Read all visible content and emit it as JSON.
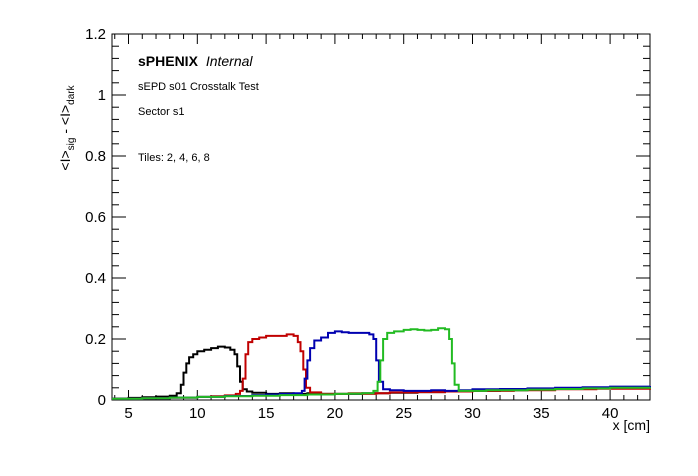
{
  "chart_data": {
    "type": "line",
    "style": "step-histogram",
    "xlabel": "x [cm]",
    "ylabel": {
      "main1": "<I>",
      "sub1": "sig",
      "mid": " - <I>",
      "sub2": "dark"
    },
    "xlim": [
      3.8,
      42.9
    ],
    "ylim": [
      0,
      1.2
    ],
    "xticks": [
      5,
      10,
      15,
      20,
      25,
      30,
      35,
      40
    ],
    "yticks": [
      0,
      0.2,
      0.4,
      0.6,
      0.8,
      1,
      1.2
    ],
    "ytick_labels": [
      "0",
      "0.2",
      "0.4",
      "0.6",
      "0.8",
      "1",
      "1.2"
    ],
    "grid": false,
    "annotations": {
      "brand": "sPHENIX",
      "status": "Internal",
      "test": "sEPD s01 Crosstalk Test",
      "sector": "Sector s1",
      "tiles": "Tiles: 2, 4, 6, 8"
    },
    "series": [
      {
        "color": "#000000",
        "points": [
          [
            3.8,
            0.005
          ],
          [
            5,
            0.007
          ],
          [
            6,
            0.009
          ],
          [
            7,
            0.011
          ],
          [
            8,
            0.014
          ],
          [
            8.5,
            0.022
          ],
          [
            8.8,
            0.05
          ],
          [
            9.0,
            0.09
          ],
          [
            9.2,
            0.12
          ],
          [
            9.4,
            0.14
          ],
          [
            9.7,
            0.15
          ],
          [
            10.0,
            0.16
          ],
          [
            10.5,
            0.165
          ],
          [
            11.0,
            0.17
          ],
          [
            11.5,
            0.175
          ],
          [
            12.0,
            0.172
          ],
          [
            12.4,
            0.165
          ],
          [
            12.7,
            0.15
          ],
          [
            12.9,
            0.11
          ],
          [
            13.1,
            0.06
          ],
          [
            13.3,
            0.035
          ],
          [
            13.6,
            0.028
          ],
          [
            14,
            0.024
          ],
          [
            15,
            0.02
          ],
          [
            16,
            0.022
          ],
          [
            17,
            0.02
          ],
          [
            18,
            0.022
          ],
          [
            19,
            0.02
          ],
          [
            20,
            0.02
          ],
          [
            22,
            0.022
          ],
          [
            24,
            0.024
          ],
          [
            26,
            0.026
          ],
          [
            28,
            0.028
          ],
          [
            30,
            0.03
          ],
          [
            32,
            0.032
          ],
          [
            34,
            0.034
          ],
          [
            36,
            0.036
          ],
          [
            38,
            0.038
          ],
          [
            40,
            0.04
          ],
          [
            42.9,
            0.042
          ]
        ]
      },
      {
        "color": "#c00000",
        "points": [
          [
            3.8,
            0.004
          ],
          [
            6,
            0.006
          ],
          [
            8,
            0.008
          ],
          [
            10,
            0.01
          ],
          [
            11,
            0.012
          ],
          [
            12,
            0.015
          ],
          [
            12.8,
            0.02
          ],
          [
            13.1,
            0.03
          ],
          [
            13.3,
            0.07
          ],
          [
            13.5,
            0.15
          ],
          [
            13.7,
            0.19
          ],
          [
            14.0,
            0.2
          ],
          [
            14.5,
            0.205
          ],
          [
            15.0,
            0.21
          ],
          [
            15.5,
            0.21
          ],
          [
            16.0,
            0.21
          ],
          [
            16.5,
            0.215
          ],
          [
            17.0,
            0.21
          ],
          [
            17.3,
            0.19
          ],
          [
            17.5,
            0.16
          ],
          [
            17.7,
            0.1
          ],
          [
            17.9,
            0.04
          ],
          [
            18.2,
            0.025
          ],
          [
            19,
            0.02
          ],
          [
            20,
            0.02
          ],
          [
            21,
            0.022
          ],
          [
            22,
            0.02
          ],
          [
            23,
            0.022
          ],
          [
            24,
            0.025
          ],
          [
            26,
            0.026
          ],
          [
            28,
            0.028
          ],
          [
            30,
            0.03
          ],
          [
            33,
            0.032
          ],
          [
            36,
            0.035
          ],
          [
            39,
            0.037
          ],
          [
            42.9,
            0.04
          ]
        ]
      },
      {
        "color": "#0000b0",
        "points": [
          [
            3.8,
            0.004
          ],
          [
            6,
            0.006
          ],
          [
            8,
            0.008
          ],
          [
            10,
            0.01
          ],
          [
            12,
            0.013
          ],
          [
            14,
            0.016
          ],
          [
            15,
            0.018
          ],
          [
            16,
            0.02
          ],
          [
            17,
            0.022
          ],
          [
            17.6,
            0.03
          ],
          [
            17.8,
            0.07
          ],
          [
            18.0,
            0.13
          ],
          [
            18.2,
            0.17
          ],
          [
            18.5,
            0.195
          ],
          [
            19.0,
            0.205
          ],
          [
            19.5,
            0.22
          ],
          [
            20.0,
            0.225
          ],
          [
            20.5,
            0.222
          ],
          [
            21.0,
            0.22
          ],
          [
            21.5,
            0.22
          ],
          [
            22.0,
            0.22
          ],
          [
            22.5,
            0.215
          ],
          [
            22.8,
            0.2
          ],
          [
            23.0,
            0.13
          ],
          [
            23.2,
            0.06
          ],
          [
            23.5,
            0.035
          ],
          [
            24,
            0.032
          ],
          [
            25,
            0.03
          ],
          [
            26,
            0.03
          ],
          [
            27,
            0.032
          ],
          [
            28,
            0.03
          ],
          [
            29,
            0.032
          ],
          [
            30,
            0.035
          ],
          [
            32,
            0.036
          ],
          [
            34,
            0.038
          ],
          [
            36,
            0.04
          ],
          [
            38,
            0.042
          ],
          [
            40,
            0.044
          ],
          [
            42.9,
            0.046
          ]
        ]
      },
      {
        "color": "#22bb22",
        "points": [
          [
            3.8,
            0.004
          ],
          [
            6,
            0.006
          ],
          [
            8,
            0.008
          ],
          [
            10,
            0.01
          ],
          [
            12,
            0.012
          ],
          [
            14,
            0.014
          ],
          [
            16,
            0.016
          ],
          [
            18,
            0.018
          ],
          [
            20,
            0.02
          ],
          [
            21,
            0.021
          ],
          [
            22,
            0.022
          ],
          [
            22.8,
            0.03
          ],
          [
            23.1,
            0.06
          ],
          [
            23.3,
            0.13
          ],
          [
            23.5,
            0.2
          ],
          [
            23.8,
            0.22
          ],
          [
            24.3,
            0.225
          ],
          [
            25.0,
            0.23
          ],
          [
            25.5,
            0.232
          ],
          [
            26.0,
            0.23
          ],
          [
            26.5,
            0.228
          ],
          [
            27.0,
            0.23
          ],
          [
            27.5,
            0.235
          ],
          [
            28.0,
            0.232
          ],
          [
            28.3,
            0.2
          ],
          [
            28.5,
            0.12
          ],
          [
            28.7,
            0.05
          ],
          [
            29.0,
            0.03
          ],
          [
            30,
            0.03
          ],
          [
            31,
            0.032
          ],
          [
            32,
            0.032
          ],
          [
            34,
            0.034
          ],
          [
            36,
            0.036
          ],
          [
            38,
            0.038
          ],
          [
            40,
            0.04
          ],
          [
            42.9,
            0.042
          ]
        ]
      }
    ]
  }
}
